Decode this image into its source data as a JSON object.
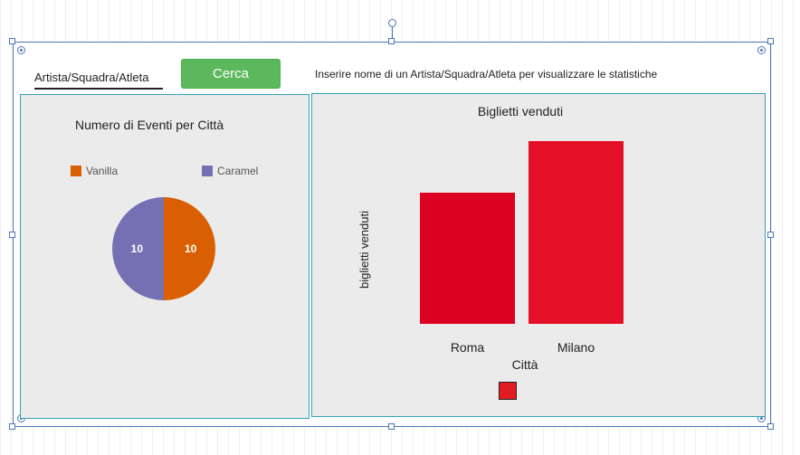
{
  "search": {
    "placeholder": "Artista/Squadra/Atleta",
    "button_label": "Cerca",
    "hint": "Inserire nome di un Artista/Squadra/Atleta per visualizzare le statistiche"
  },
  "colors": {
    "selection": "#4a76b8",
    "button": "#5cb85c",
    "panel_border": "#35a0b7",
    "panel_bg": "#ebebeb"
  },
  "chart_data": [
    {
      "type": "pie",
      "title": "Numero di Eventi per Città",
      "categories": [
        "Vanilla",
        "Caramel"
      ],
      "values": [
        10,
        10
      ],
      "colors": [
        "#d95f02",
        "#7570b3"
      ],
      "legend": "top"
    },
    {
      "type": "bar",
      "title": "Biglietti venduti",
      "xlabel": "Città",
      "ylabel": "biglietti venduti",
      "categories": [
        "Roma",
        "Milano"
      ],
      "values": [
        145,
        202
      ],
      "ylim": [
        0,
        202
      ],
      "colors": [
        "#dc0021",
        "#e31028"
      ],
      "legend_swatch_color": "#e31c23",
      "grid": false
    }
  ]
}
